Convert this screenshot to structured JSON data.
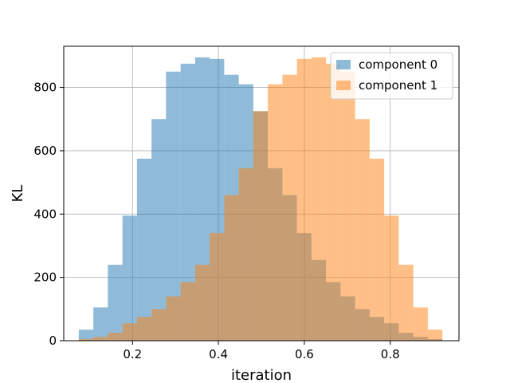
{
  "chart_data": {
    "type": "bar",
    "title": "",
    "xlabel": "iteration",
    "ylabel": "KL",
    "xlim": [
      0.04,
      0.96
    ],
    "ylim": [
      0,
      930
    ],
    "xticks": [
      0.2,
      0.4,
      0.6,
      0.8
    ],
    "yticks": [
      0,
      200,
      400,
      600,
      800
    ],
    "grid": true,
    "legend_position": "top-right",
    "series": [
      {
        "name": "component 0",
        "color": "#1f77b4",
        "bin_edges": [
          0.075,
          0.1089,
          0.1427,
          0.1766,
          0.2104,
          0.2443,
          0.2781,
          0.312,
          0.3458,
          0.3797,
          0.4135,
          0.4474,
          0.4812,
          0.5151,
          0.5489,
          0.5828,
          0.6166,
          0.6505,
          0.6843,
          0.7182,
          0.752,
          0.7859,
          0.8197,
          0.8536,
          0.8874,
          0.9213
        ],
        "counts": [
          35,
          105,
          240,
          395,
          575,
          700,
          850,
          875,
          895,
          890,
          840,
          810,
          725,
          545,
          460,
          340,
          255,
          185,
          140,
          100,
          75,
          55,
          25,
          12,
          5
        ]
      },
      {
        "name": "component 1",
        "color": "#ff7f0e",
        "bin_edges": [
          0.075,
          0.1089,
          0.1427,
          0.1766,
          0.2104,
          0.2443,
          0.2781,
          0.312,
          0.3458,
          0.3797,
          0.4135,
          0.4474,
          0.4812,
          0.5151,
          0.5489,
          0.5828,
          0.6166,
          0.6505,
          0.6843,
          0.7182,
          0.752,
          0.7859,
          0.8197,
          0.8536,
          0.8874,
          0.9213
        ],
        "counts": [
          5,
          12,
          25,
          55,
          75,
          100,
          140,
          185,
          240,
          340,
          460,
          545,
          725,
          810,
          840,
          890,
          895,
          875,
          850,
          700,
          575,
          395,
          240,
          105,
          35
        ]
      }
    ]
  }
}
